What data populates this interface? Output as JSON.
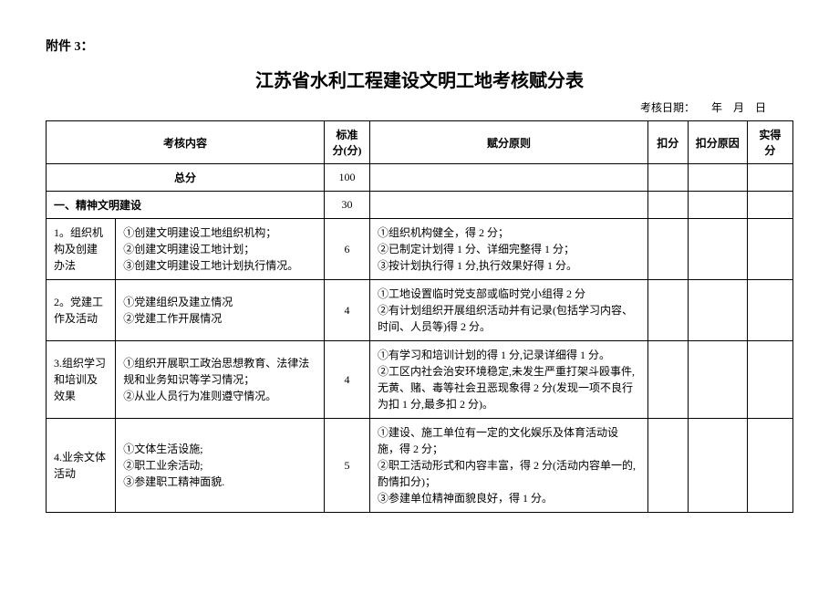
{
  "attachment": "附件 3：",
  "title": "江苏省水利工程建设文明工地考核赋分表",
  "dateLine": "考核日期：　　年　月　日",
  "headers": {
    "content": "考核内容",
    "standard": "标准分(分)",
    "principle": "赋分原则",
    "deduct": "扣分",
    "reason": "扣分原因",
    "actual": "实得分"
  },
  "totalRow": {
    "label": "总分",
    "score": "100"
  },
  "sectionRow": {
    "label": "一、精神文明建设",
    "score": "30"
  },
  "rows": [
    {
      "name": "1。组织机构及创建办法",
      "content": "①创建文明建设工地组织机构；\n②创建文明建设工地计划；\n③创建文明建设工地计划执行情况。",
      "score": "6",
      "principle": "①组织机构健全，得 2 分；\n②已制定计划得 1 分、详细完整得 1 分；\n③按计划执行得 1 分,执行效果好得 1 分。"
    },
    {
      "name": "2。党建工作及活动",
      "content": "①党建组织及建立情况\n②党建工作开展情况",
      "score": "4",
      "principle": "①工地设置临时党支部或临时党小组得 2 分\n②有计划组织开展组织活动并有记录(包括学习内容、时间、人员等)得 2 分。"
    },
    {
      "name": "3.组织学习和培训及效果",
      "content": "①组织开展职工政治思想教育、法律法规和业务知识等学习情况；\n②从业人员行为准则遵守情况。",
      "score": "4",
      "principle": "①有学习和培训计划的得 1 分,记录详细得 1 分。\n②工区内社会治安环境稳定,未发生严重打架斗殴事件,无黄、赌、毒等社会丑恶现象得 2 分(发现一项不良行为扣 1 分,最多扣 2 分)。"
    },
    {
      "name": "4.业余文体活动",
      "content": "①文体生活设施;\n②职工业余活动;\n③参建职工精神面貌.",
      "score": "5",
      "principle": "①建设、施工单位有一定的文化娱乐及体育活动设施，得 2 分；\n②职工活动形式和内容丰富，得 2 分(活动内容单一的,酌情扣分)；\n③参建单位精神面貌良好，得 1 分。"
    }
  ]
}
